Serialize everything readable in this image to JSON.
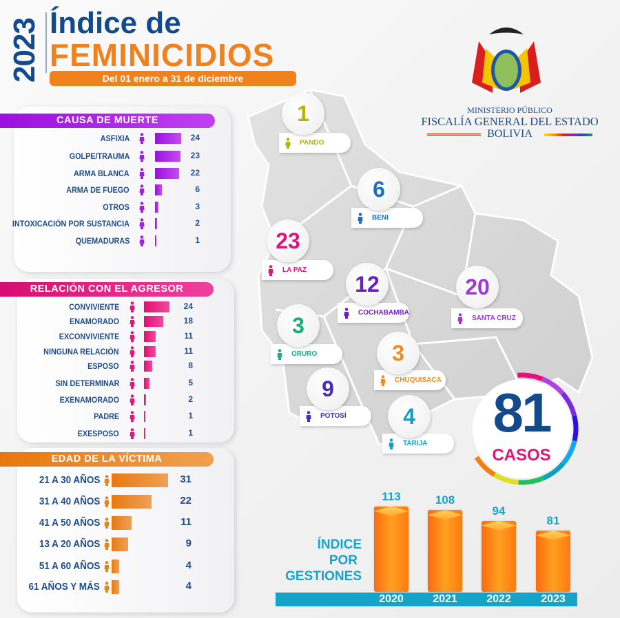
{
  "header": {
    "year": "2023",
    "title_line1": "Índice de",
    "title_line2": "FEMINICIDIOS",
    "subtitle": "Del 01 enero a 31 de diciembre"
  },
  "logo": {
    "line1": "MINISTERIO PÚBLICO",
    "line2": "FISCALÍA GENERAL DEL ESTADO",
    "line3": "BOLIVIA"
  },
  "colors": {
    "blue": "#124a8c",
    "orange": "#f0821e",
    "purple": "#a020e0",
    "pink": "#e8147c",
    "teal": "#16a3c8"
  },
  "total": {
    "value": "81",
    "label": "CASOS"
  },
  "departments": [
    {
      "name": "PANDO",
      "value": "1",
      "color": "#b3b300"
    },
    {
      "name": "BENI",
      "value": "6",
      "color": "#1a6fbf"
    },
    {
      "name": "LA PAZ",
      "value": "23",
      "color": "#e0157a"
    },
    {
      "name": "COCHABAMBA",
      "value": "12",
      "color": "#6a1fc4"
    },
    {
      "name": "SANTA CRUZ",
      "value": "20",
      "color": "#9b3bd0"
    },
    {
      "name": "ORURO",
      "value": "3",
      "color": "#17b07a"
    },
    {
      "name": "CHUQUISACA",
      "value": "3",
      "color": "#f7891e"
    },
    {
      "name": "POTOSÍ",
      "value": "9",
      "color": "#4a2bb8"
    },
    {
      "name": "TARIJA",
      "value": "4",
      "color": "#17a0c4"
    }
  ],
  "chart_data": [
    {
      "type": "bar",
      "orientation": "horizontal",
      "title": "CAUSA DE MUERTE",
      "color": "#a020e0",
      "categories": [
        "ASFIXIA",
        "GOLPE/TRAUMA",
        "ARMA BLANCA",
        "ARMA DE FUEGO",
        "OTROS",
        "INTOXICACIÓN POR SUSTANCIA",
        "QUEMADURAS"
      ],
      "values": [
        24,
        23,
        22,
        6,
        3,
        2,
        1
      ]
    },
    {
      "type": "bar",
      "orientation": "horizontal",
      "title": "RELACIÓN CON EL AGRESOR",
      "color": "#e8147c",
      "categories": [
        "CONVIVIENTE",
        "ENAMORADO",
        "EXCONVIVIENTE",
        "NINGUNA RELACIÓN",
        "ESPOSO",
        "SIN DETERMINAR",
        "EXENAMORADO",
        "PADRE",
        "EXESPOSO"
      ],
      "values": [
        24,
        18,
        11,
        11,
        8,
        5,
        2,
        1,
        1
      ]
    },
    {
      "type": "bar",
      "orientation": "horizontal",
      "title": "EDAD DE LA VÍCTIMA",
      "color": "#e8841e",
      "categories": [
        "21 A 30 AÑOS",
        "31 A 40 AÑOS",
        "41 A 50 AÑOS",
        "13 A 20 AÑOS",
        "51 A 60 AÑOS",
        "61 AÑOS Y MÁS"
      ],
      "values": [
        31,
        22,
        11,
        9,
        4,
        4
      ]
    },
    {
      "type": "bar",
      "orientation": "vertical",
      "title": "ÍNDICE POR GESTIONES",
      "title_lines": [
        "ÍNDICE",
        "POR",
        "GESTIONES"
      ],
      "color": "#ff8a1a",
      "categories": [
        "2020",
        "2021",
        "2022",
        "2023"
      ],
      "values": [
        113,
        108,
        94,
        81
      ]
    }
  ]
}
